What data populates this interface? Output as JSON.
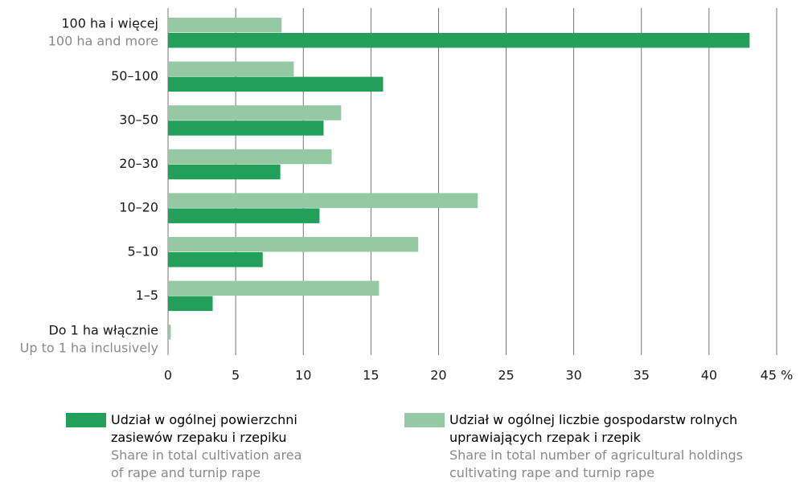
{
  "chart_data": {
    "type": "bar",
    "orientation": "horizontal",
    "categories": [
      "100 ha i więcej",
      "50–100",
      "30–50",
      "20–30",
      "10–20",
      "5–10",
      "1–5",
      "Do 1 ha włącznie"
    ],
    "categories_en": [
      "100 ha and more",
      null,
      null,
      null,
      null,
      null,
      null,
      "Up to 1 ha inclusively"
    ],
    "series": [
      {
        "name": "Udział w ogólnej liczbie gospodarstw rolnych uprawiających rzepak i rzepik",
        "name_en": "Share in total number of agricultural holdings cultivating rape and turnip rape",
        "color": "#94c9a3",
        "values": [
          8.4,
          9.3,
          12.8,
          12.1,
          22.9,
          18.5,
          15.6,
          0.2
        ]
      },
      {
        "name": "Udział w ogólnej powierzchni zasiewów rzepaku i rzepiku",
        "name_en": "Share in total cultivation area of rape and turnip rape",
        "color": "#22a05a",
        "values": [
          43.0,
          15.9,
          11.5,
          8.3,
          11.2,
          7.0,
          3.3,
          0
        ]
      }
    ],
    "xlim": [
      0,
      45
    ],
    "xticks": [
      0,
      5,
      10,
      15,
      20,
      25,
      30,
      35,
      40,
      {
        "value": 45,
        "label": "45 %"
      }
    ],
    "grid": true
  }
}
